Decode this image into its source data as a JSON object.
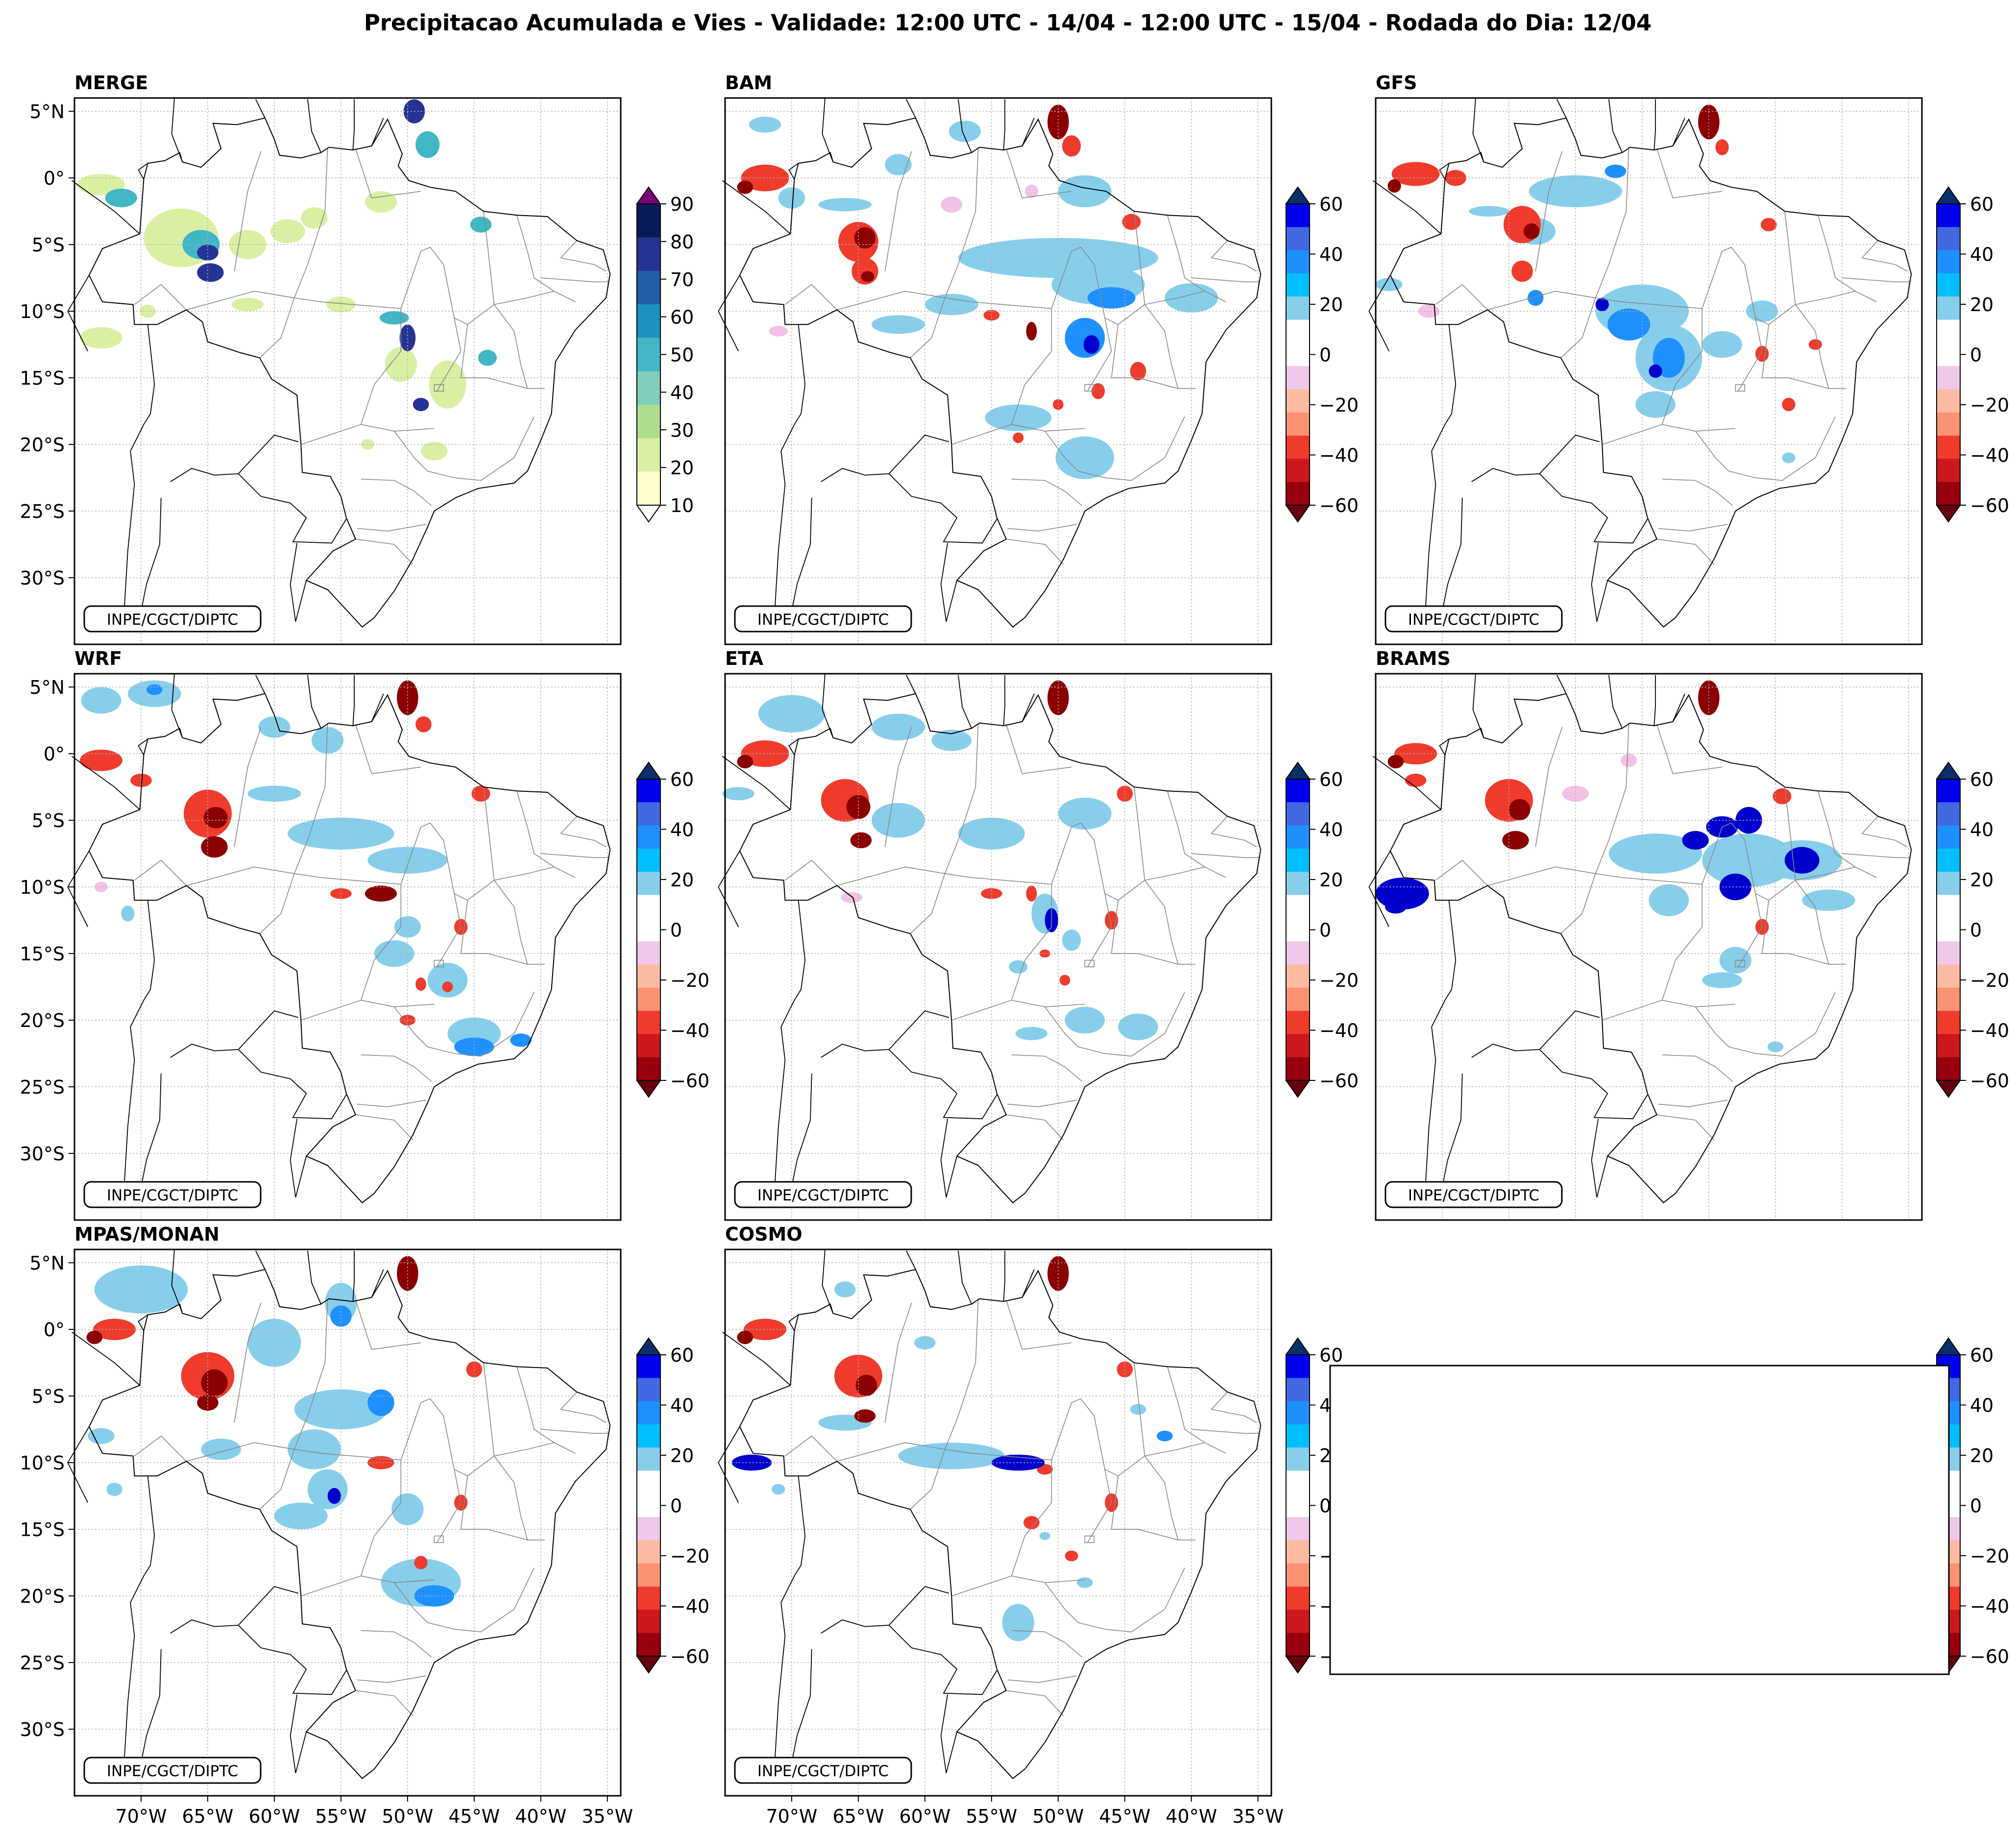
{
  "figure": {
    "title": "Precipitacao Acumulada e Vies - Validade: 12:00 UTC - 14/04 - 12:00 UTC - 15/04 - Rodada do Dia: 12/04"
  },
  "axes": {
    "lat_ticks": [
      "5°N",
      "0°",
      "5°S",
      "10°S",
      "15°S",
      "20°S",
      "25°S",
      "30°S"
    ],
    "lon_ticks": [
      "70°W",
      "65°W",
      "60°W",
      "55°W",
      "50°W",
      "45°W",
      "40°W",
      "35°W"
    ]
  },
  "credit": "INPE/CGCT/DIPTC",
  "panels": [
    {
      "name": "MERGE",
      "kind": "precip"
    },
    {
      "name": "BAM",
      "kind": "bias"
    },
    {
      "name": "GFS",
      "kind": "bias"
    },
    {
      "name": "WRF",
      "kind": "bias"
    },
    {
      "name": "ETA",
      "kind": "bias"
    },
    {
      "name": "BRAMS",
      "kind": "bias"
    },
    {
      "name": "MPAS/MONAN",
      "kind": "bias"
    },
    {
      "name": "COSMO",
      "kind": "bias"
    }
  ],
  "colorbars": {
    "precip": {
      "ticks": [
        "90",
        "80",
        "70",
        "60",
        "50",
        "40",
        "30",
        "20",
        "10"
      ],
      "colors": [
        "#ffffcc",
        "#d9f0a3",
        "#addd8e",
        "#7fcdbb",
        "#41b6c4",
        "#1d91c0",
        "#225ea8",
        "#253494",
        "#081d58"
      ],
      "over": "#7a0177",
      "under": "#ffffff"
    },
    "bias": {
      "ticks": [
        "60",
        "40",
        "20",
        "0",
        "−20",
        "−40",
        "−60"
      ],
      "colors_bottom_to_top": [
        "#99000d",
        "#cb181d",
        "#ef3b2c",
        "#fc9272",
        "#fcbba1",
        "#f0c8ea",
        "#ffffff",
        "#ffffff",
        "#87ceeb",
        "#00bfff",
        "#1e90ff",
        "#4169e1",
        "#0000ee"
      ],
      "over": "#08306b",
      "under": "#67000d"
    }
  },
  "colors": {
    "precip_light": "#d9f0a3",
    "precip_mid": "#41b6c4",
    "precip_heavy": "#253494",
    "bias_wet_light": "#87ceeb",
    "bias_wet": "#1e90ff",
    "bias_wet_strong": "#0000cd",
    "bias_dry_light": "#f3c0e6",
    "bias_dry": "#ef3b2c",
    "bias_dry_strong": "#8b0000",
    "borders": "#000000",
    "state_lines": "#888888",
    "grid": "#b0b0b0"
  }
}
